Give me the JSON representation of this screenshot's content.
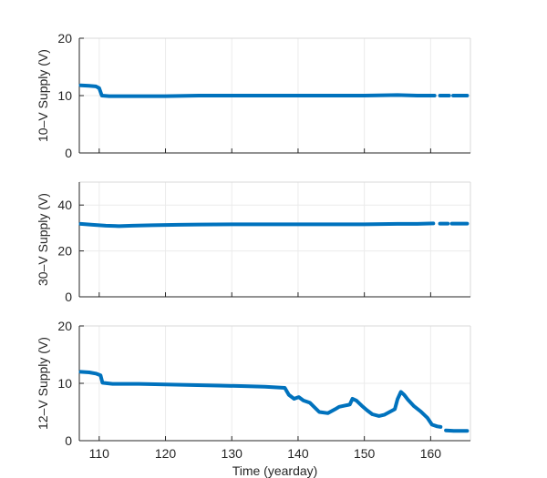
{
  "chart_data": [
    {
      "type": "line",
      "ylabel": "10–V Supply (V)",
      "xlabel": "",
      "xlim": [
        107,
        166
      ],
      "ylim": [
        0,
        20
      ],
      "yticks": [
        0,
        10,
        20
      ],
      "xticks": [
        110,
        120,
        130,
        140,
        150,
        160
      ],
      "show_xtick_labels": false,
      "grid": true,
      "color": "#0072bd",
      "series": [
        {
          "segments": [
            [
              [
                107.2,
                11.8
              ],
              [
                108.5,
                11.7
              ],
              [
                109.5,
                11.6
              ],
              [
                110.0,
                11.3
              ],
              [
                110.4,
                10.0
              ],
              [
                111.5,
                9.9
              ],
              [
                115,
                9.9
              ],
              [
                120,
                9.9
              ],
              [
                125,
                10.0
              ],
              [
                130,
                10.0
              ],
              [
                135,
                10.0
              ],
              [
                140,
                10.0
              ],
              [
                145,
                10.0
              ],
              [
                150,
                10.0
              ],
              [
                155,
                10.1
              ],
              [
                158,
                10.0
              ],
              [
                160.6,
                10.0
              ]
            ],
            [
              [
                161.4,
                10.0
              ],
              [
                162.8,
                10.0
              ]
            ],
            [
              [
                163.4,
                10.0
              ],
              [
                165.5,
                10.0
              ]
            ]
          ]
        }
      ]
    },
    {
      "type": "line",
      "ylabel": "30–V Supply (V)",
      "xlabel": "",
      "xlim": [
        107,
        166
      ],
      "ylim": [
        0,
        50
      ],
      "yticks": [
        0,
        20,
        40
      ],
      "xticks": [
        110,
        120,
        130,
        140,
        150,
        160
      ],
      "show_xtick_labels": false,
      "grid": true,
      "color": "#0072bd",
      "series": [
        {
          "segments": [
            [
              [
                107.2,
                31.8
              ],
              [
                109,
                31.4
              ],
              [
                111,
                31.0
              ],
              [
                113,
                30.8
              ],
              [
                115,
                31.0
              ],
              [
                118,
                31.2
              ],
              [
                122,
                31.4
              ],
              [
                125,
                31.5
              ],
              [
                130,
                31.6
              ],
              [
                135,
                31.6
              ],
              [
                140,
                31.6
              ],
              [
                145,
                31.6
              ],
              [
                150,
                31.6
              ],
              [
                155,
                31.8
              ],
              [
                158,
                31.8
              ],
              [
                160.4,
                32.0
              ]
            ],
            [
              [
                161.4,
                31.9
              ],
              [
                162.6,
                31.9
              ]
            ],
            [
              [
                163.2,
                31.9
              ],
              [
                165.5,
                31.9
              ]
            ]
          ]
        }
      ]
    },
    {
      "type": "line",
      "ylabel": "12–V Supply (V)",
      "xlabel": "Time (yearday)",
      "xlim": [
        107,
        166
      ],
      "ylim": [
        0,
        20
      ],
      "yticks": [
        0,
        10,
        20
      ],
      "xticks": [
        110,
        120,
        130,
        140,
        150,
        160
      ],
      "show_xtick_labels": true,
      "grid": true,
      "color": "#0072bd",
      "series": [
        {
          "segments": [
            [
              [
                107.2,
                12.0
              ],
              [
                108.5,
                11.9
              ],
              [
                109.5,
                11.7
              ],
              [
                110.2,
                11.4
              ],
              [
                110.5,
                10.1
              ],
              [
                112,
                9.9
              ],
              [
                116,
                9.9
              ],
              [
                120,
                9.8
              ],
              [
                124,
                9.7
              ],
              [
                128,
                9.6
              ],
              [
                132,
                9.5
              ],
              [
                135,
                9.4
              ],
              [
                138,
                9.2
              ],
              [
                138.6,
                8.0
              ],
              [
                139.4,
                7.3
              ],
              [
                140.1,
                7.6
              ],
              [
                140.8,
                7.0
              ],
              [
                141.8,
                6.6
              ],
              [
                142.5,
                5.8
              ],
              [
                143.2,
                5.0
              ],
              [
                144.5,
                4.8
              ],
              [
                145.6,
                5.5
              ],
              [
                146.2,
                5.9
              ],
              [
                147.0,
                6.1
              ],
              [
                147.8,
                6.3
              ],
              [
                148.2,
                7.3
              ],
              [
                148.8,
                7.0
              ],
              [
                149.6,
                6.1
              ],
              [
                150.4,
                5.3
              ],
              [
                151.2,
                4.6
              ],
              [
                152.2,
                4.3
              ],
              [
                153.0,
                4.5
              ],
              [
                153.8,
                5.0
              ],
              [
                154.6,
                5.5
              ],
              [
                155.0,
                7.2
              ],
              [
                155.5,
                8.5
              ],
              [
                156.0,
                8.0
              ],
              [
                156.6,
                7.1
              ],
              [
                157.5,
                6.0
              ],
              [
                158.5,
                5.1
              ],
              [
                159.5,
                4.0
              ],
              [
                160.2,
                2.8
              ],
              [
                161.0,
                2.5
              ],
              [
                161.5,
                2.4
              ]
            ],
            [
              [
                162.3,
                1.8
              ],
              [
                163.5,
                1.7
              ],
              [
                165.5,
                1.7
              ]
            ]
          ]
        }
      ]
    }
  ]
}
